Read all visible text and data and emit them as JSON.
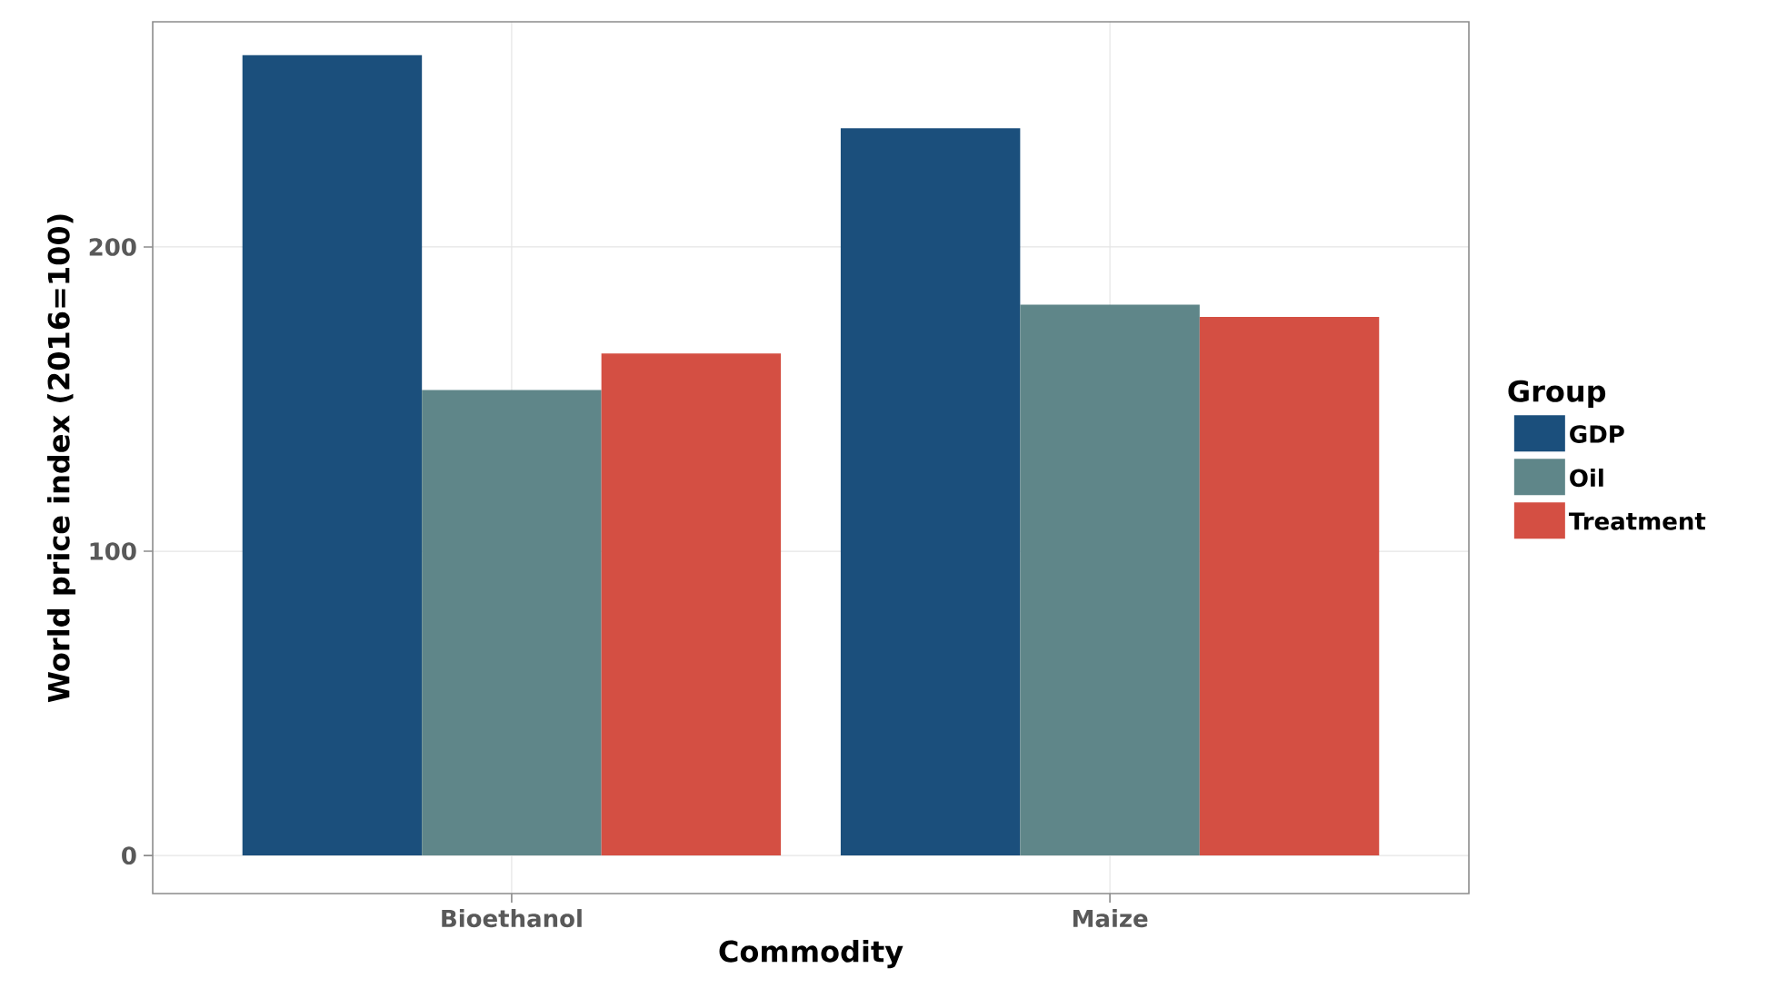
{
  "chart_data": {
    "type": "bar",
    "xlabel": "Commodity",
    "ylabel": "World price index (2016=100)",
    "legend_title": "Group",
    "categories": [
      "Bioethanol",
      "Maize"
    ],
    "series": [
      {
        "name": "GDP",
        "color": "#1b4f7c",
        "values": [
          263,
          239
        ]
      },
      {
        "name": "Oil",
        "color": "#5f8689",
        "values": [
          153,
          181
        ]
      },
      {
        "name": "Treatment",
        "color": "#d44f43",
        "values": [
          165,
          177
        ]
      }
    ],
    "ylim": [
      -12.5,
      274
    ],
    "yticks": [
      0,
      100,
      200
    ],
    "grid": true,
    "legend": "right"
  }
}
